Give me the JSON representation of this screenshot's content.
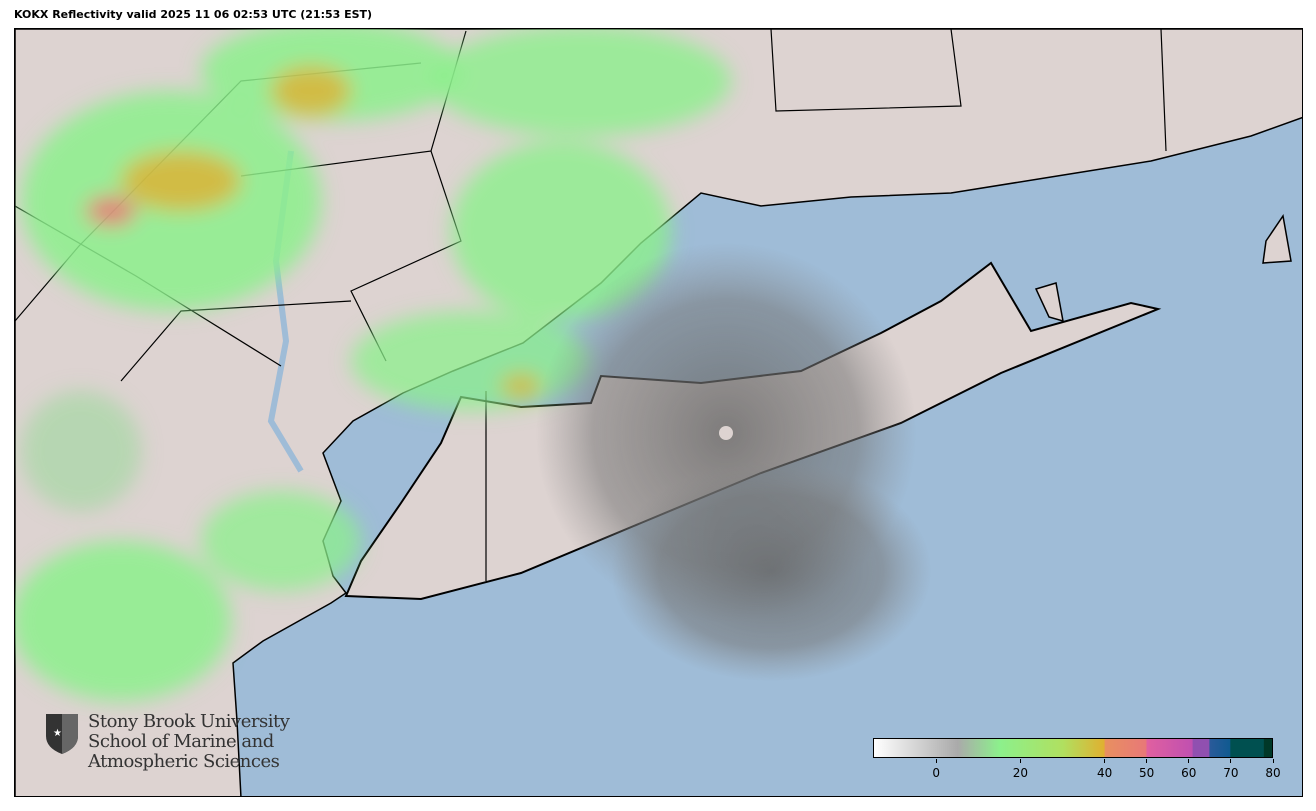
{
  "title": "KOKX Reflectivity valid 2025 11 06 02:53 UTC (21:53 EST)",
  "map": {
    "radar_site": "KOKX",
    "colors": {
      "ocean": "#9fbcd7",
      "land": "#ddd3d1",
      "border": "#000000"
    }
  },
  "logo": {
    "line1": "Stony Brook University",
    "line2": "School of Marine and",
    "line3": "Atmospheric Sciences"
  },
  "colorbar": {
    "range": [
      -15,
      80
    ],
    "ticks": [
      {
        "value": 0,
        "label": "0"
      },
      {
        "value": 20,
        "label": "20"
      },
      {
        "value": 40,
        "label": "40"
      },
      {
        "value": 50,
        "label": "50"
      },
      {
        "value": 60,
        "label": "60"
      },
      {
        "value": 70,
        "label": "70"
      },
      {
        "value": 80,
        "label": "80"
      }
    ],
    "stops": [
      {
        "value": -15,
        "color": "#ffffff"
      },
      {
        "value": 5,
        "color": "#aaaaaa"
      },
      {
        "value": 15,
        "color": "#8cf08c"
      },
      {
        "value": 30,
        "color": "#b0e060"
      },
      {
        "value": 40,
        "color": "#e0b030"
      },
      {
        "value": 40.1,
        "color": "#e89060"
      },
      {
        "value": 50,
        "color": "#e87878"
      },
      {
        "value": 50.1,
        "color": "#e060a0"
      },
      {
        "value": 61,
        "color": "#c050b0"
      },
      {
        "value": 61.1,
        "color": "#9050b0"
      },
      {
        "value": 65,
        "color": "#9050b0"
      },
      {
        "value": 65.1,
        "color": "#2a5a9a"
      },
      {
        "value": 70,
        "color": "#105a90"
      },
      {
        "value": 70.1,
        "color": "#005050"
      },
      {
        "value": 78,
        "color": "#005050"
      },
      {
        "value": 78.1,
        "color": "#003828"
      },
      {
        "value": 80,
        "color": "#003828"
      }
    ]
  }
}
